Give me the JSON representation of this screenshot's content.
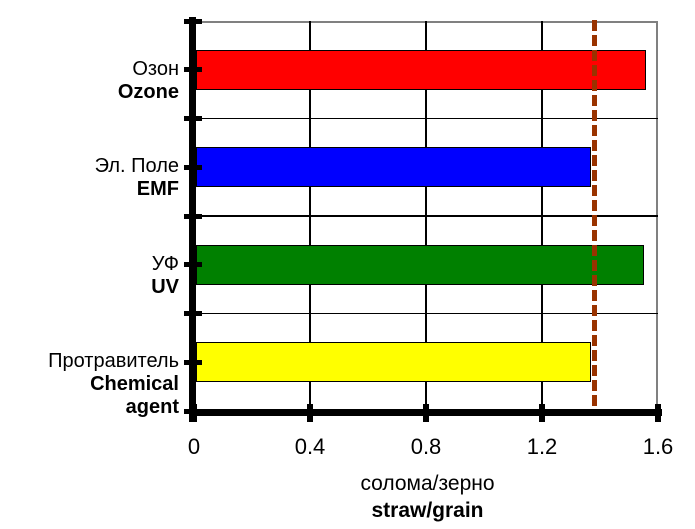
{
  "chart_data": {
    "type": "bar",
    "orientation": "horizontal",
    "title": "",
    "xlabel": {
      "ru": "солома/зерно",
      "en": "straw/grain"
    },
    "xlim": [
      0,
      1.6
    ],
    "xticks": [
      {
        "value": 0,
        "label": "0"
      },
      {
        "value": 0.4,
        "label": "0.4"
      },
      {
        "value": 0.8,
        "label": "0.8"
      },
      {
        "value": 1.2,
        "label": "1.2"
      },
      {
        "value": 1.6,
        "label": "1.6"
      }
    ],
    "grid": true,
    "legend": false,
    "categories": [
      {
        "id": "ozone",
        "label_ru": "Озон",
        "label_en_lines": [
          "Ozone"
        ],
        "value": 1.56,
        "color": "#FF0000"
      },
      {
        "id": "emf",
        "label_ru": "Эл. Поле",
        "label_en_lines": [
          "EMF"
        ],
        "value": 1.37,
        "color": "#0000FF"
      },
      {
        "id": "uv",
        "label_ru": "УФ",
        "label_en_lines": [
          "UV"
        ],
        "value": 1.55,
        "color": "#008000"
      },
      {
        "id": "chemical-agent",
        "label_ru": "Протравитель",
        "label_en_lines": [
          "Chemical",
          "agent"
        ],
        "value": 1.37,
        "color": "#FFFF00"
      }
    ],
    "reference_line": {
      "value": 1.38,
      "style": "dashed",
      "color": "#993300"
    },
    "colors": {
      "axis": "#000000",
      "gridline": "#000000",
      "bar_border": "#000000",
      "plot_border": "#808080",
      "background": "#FFFFFF",
      "text": "#000000"
    }
  }
}
